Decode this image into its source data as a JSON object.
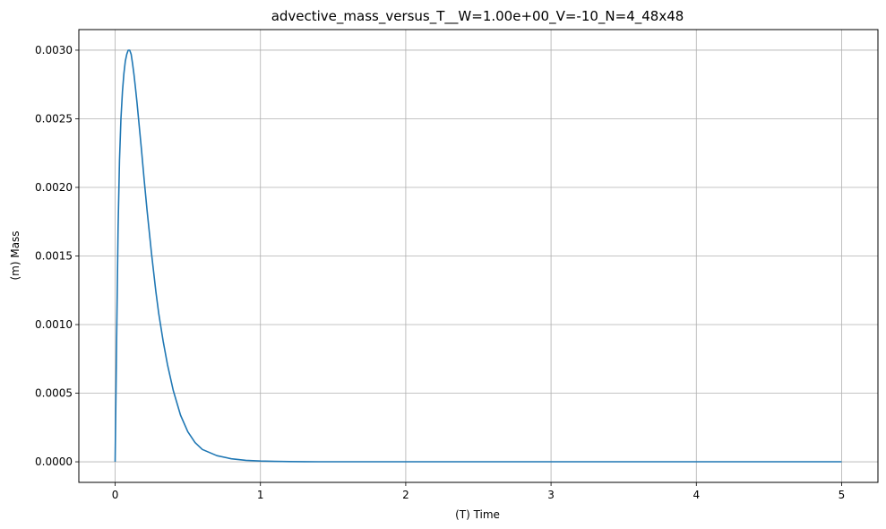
{
  "chart_data": {
    "type": "line",
    "title": "advective_mass_versus_T__W=1.00e+00_V=-10_N=4_48x48",
    "xlabel": "(T) Time",
    "ylabel": "(m) Mass",
    "xlim": [
      -0.25,
      5.25
    ],
    "ylim": [
      -0.00015,
      0.00315
    ],
    "xticks": [
      0,
      1,
      2,
      3,
      4,
      5
    ],
    "xtick_labels": [
      "0",
      "1",
      "2",
      "3",
      "4",
      "5"
    ],
    "yticks": [
      0,
      0.0005,
      0.001,
      0.0015,
      0.002,
      0.0025,
      0.003
    ],
    "ytick_labels": [
      "0.0000",
      "0.0005",
      "0.0010",
      "0.0015",
      "0.0020",
      "0.0025",
      "0.0030"
    ],
    "grid": true,
    "line_color": "#1f77b4",
    "series": [
      {
        "x": [
          0,
          0.01,
          0.02,
          0.03,
          0.04,
          0.05,
          0.06,
          0.07,
          0.08,
          0.09,
          0.1,
          0.11,
          0.12,
          0.13,
          0.14,
          0.15,
          0.16,
          0.18,
          0.2,
          0.22,
          0.25,
          0.28,
          0.3,
          0.33,
          0.36,
          0.4,
          0.45,
          0.5,
          0.55,
          0.6,
          0.7,
          0.8,
          0.9,
          1.0,
          1.1,
          1.2,
          1.3,
          1.4,
          1.5,
          1.75,
          2.0,
          2.5,
          3.0,
          3.5,
          4.0,
          4.5,
          5.0
        ],
        "y": [
          0.0,
          0.0009,
          0.0017,
          0.0022,
          0.0025,
          0.0027,
          0.00283,
          0.00292,
          0.00297,
          0.003,
          0.003,
          0.00297,
          0.0029,
          0.00282,
          0.00272,
          0.00262,
          0.00251,
          0.00229,
          0.00205,
          0.00183,
          0.00152,
          0.00124,
          0.00108,
          0.00088,
          0.00071,
          0.00052,
          0.00034,
          0.00022,
          0.00014,
          9e-05,
          4.5e-05,
          2.2e-05,
          1.1e-05,
          5.5e-06,
          2.8e-06,
          1.4e-06,
          7e-07,
          4e-07,
          2e-07,
          5e-08,
          0.0,
          0.0,
          0.0,
          0.0,
          0.0,
          0.0,
          0.0
        ]
      }
    ]
  }
}
